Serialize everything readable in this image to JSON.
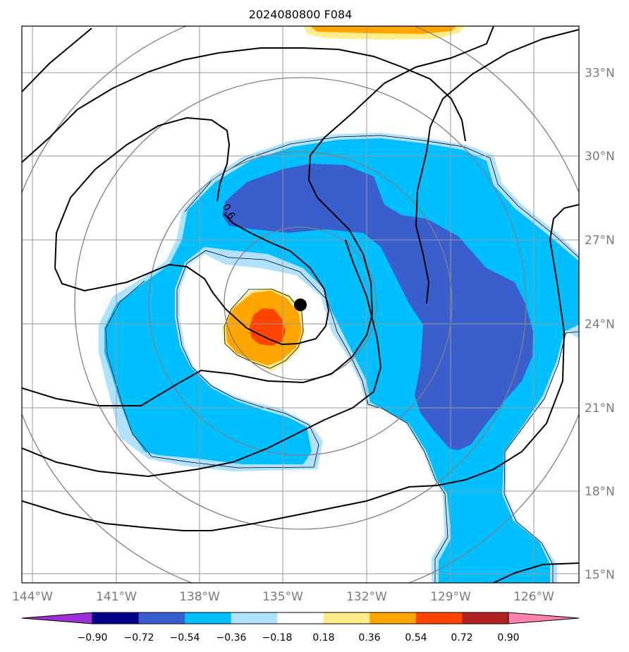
{
  "title": "2024080800 F084",
  "map": {
    "lon_labels": [
      "144°W",
      "141°W",
      "138°W",
      "135°W",
      "132°W",
      "129°W",
      "126°W"
    ],
    "lat_labels": [
      "33°N",
      "30°N",
      "27°N",
      "24°N",
      "21°N",
      "18°N",
      "15°N"
    ],
    "contour_label": "0.6",
    "storm_center_marker": "black-dot",
    "range_rings": "concentric-circles"
  },
  "colorbar": {
    "labels": [
      "−0.90",
      "−0.72",
      "−0.54",
      "−0.36",
      "−0.18",
      "0.18",
      "0.36",
      "0.54",
      "0.72",
      "0.90"
    ],
    "colors": [
      "#9b30d9",
      "#00008b",
      "#3a5fcd",
      "#00bfff",
      "#b0e2ff",
      "#ffffff",
      "#ffec8b",
      "#ffa500",
      "#ff4500",
      "#b22222",
      "#ff82ab"
    ]
  },
  "palette": {
    "fill_dark_blue": "#3a5fcd",
    "fill_blue": "#00bfff",
    "fill_light_blue": "#b0e2ff",
    "fill_yellow": "#ffec8b",
    "fill_orange": "#ffa500",
    "fill_red": "#ff4500",
    "grid": "#999999",
    "rings": "#808080"
  }
}
